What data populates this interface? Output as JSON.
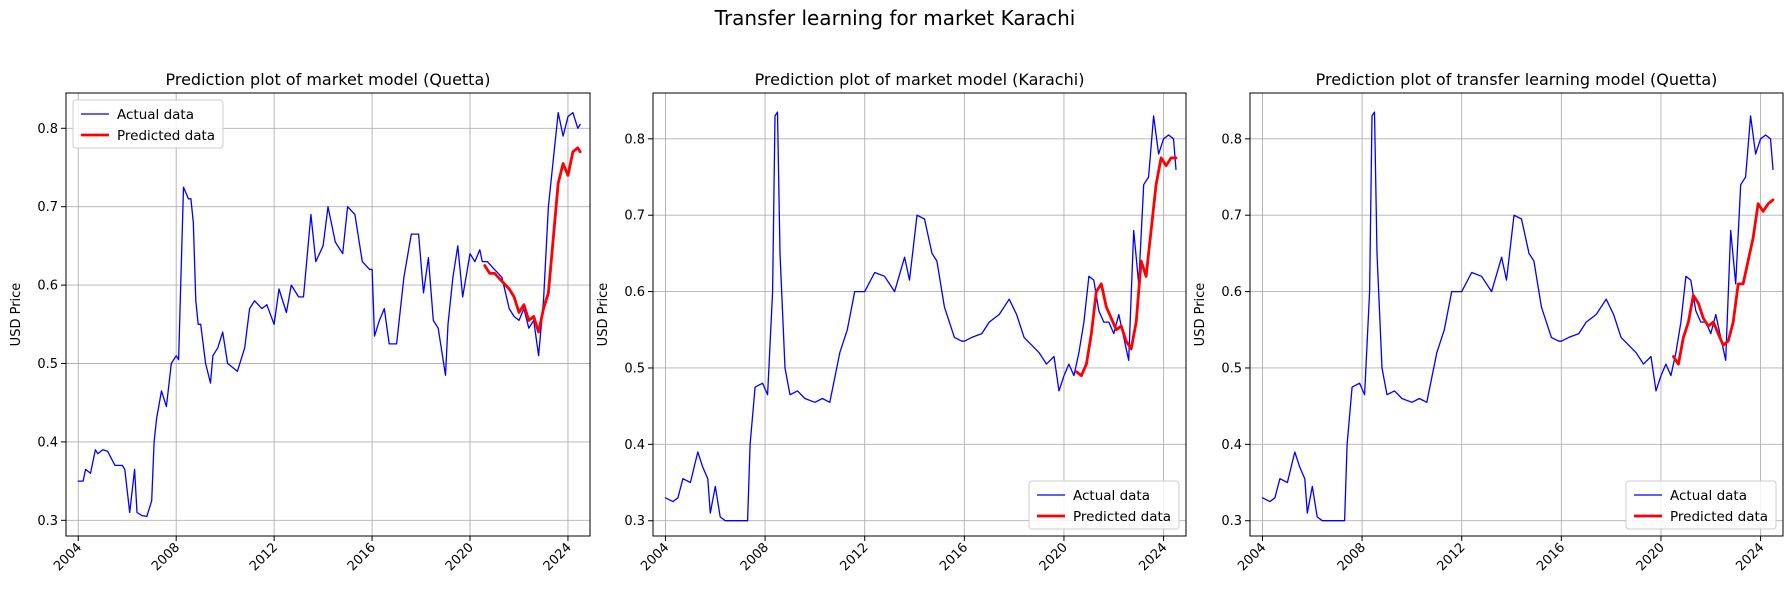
{
  "suptitle": "Transfer learning for market Karachi",
  "colors": {
    "actual": "#0000ff",
    "predicted": "#ff0000",
    "grid": "#b0b0b0"
  },
  "chart_data": [
    {
      "type": "line",
      "title": "Prediction plot of market model (Quetta)",
      "xlabel": "",
      "ylabel": "USD Price",
      "xlim": [
        2003.5,
        2024.9
      ],
      "ylim": [
        0.28,
        0.845
      ],
      "xticks": [
        2004,
        2008,
        2012,
        2016,
        2020,
        2024
      ],
      "yticks": [
        0.3,
        0.4,
        0.5,
        0.6,
        0.7,
        0.8
      ],
      "grid": true,
      "legend": {
        "placement": "upper-left",
        "entries": [
          "Actual data",
          "Predicted data"
        ]
      },
      "series": [
        {
          "name": "Actual data",
          "color": "#0000ff",
          "x": [
            2004.0,
            2004.2,
            2004.3,
            2004.5,
            2004.7,
            2004.8,
            2005.0,
            2005.2,
            2005.5,
            2005.8,
            2005.9,
            2006.1,
            2006.3,
            2006.4,
            2006.5,
            2006.6,
            2006.8,
            2007.0,
            2007.1,
            2007.2,
            2007.4,
            2007.6,
            2007.8,
            2008.0,
            2008.1,
            2008.3,
            2008.5,
            2008.6,
            2008.7,
            2008.8,
            2008.9,
            2009.0,
            2009.2,
            2009.4,
            2009.5,
            2009.7,
            2009.9,
            2010.1,
            2010.3,
            2010.5,
            2010.8,
            2011.0,
            2011.2,
            2011.5,
            2011.7,
            2012.0,
            2012.2,
            2012.5,
            2012.7,
            2013.0,
            2013.2,
            2013.5,
            2013.7,
            2014.0,
            2014.2,
            2014.5,
            2014.8,
            2015.0,
            2015.3,
            2015.6,
            2015.9,
            2016.0,
            2016.1,
            2016.3,
            2016.5,
            2016.7,
            2017.0,
            2017.3,
            2017.6,
            2017.9,
            2018.1,
            2018.3,
            2018.5,
            2018.7,
            2019.0,
            2019.1,
            2019.3,
            2019.5,
            2019.7,
            2020.0,
            2020.2,
            2020.4,
            2020.5,
            2020.7,
            2021.0,
            2021.3,
            2021.6,
            2021.8,
            2022.0,
            2022.2,
            2022.4,
            2022.6,
            2022.8,
            2023.0,
            2023.2,
            2023.4,
            2023.6,
            2023.8,
            2024.0,
            2024.2,
            2024.4,
            2024.5
          ],
          "y": [
            0.35,
            0.35,
            0.365,
            0.36,
            0.39,
            0.385,
            0.39,
            0.388,
            0.37,
            0.37,
            0.365,
            0.31,
            0.365,
            0.31,
            0.308,
            0.306,
            0.305,
            0.325,
            0.4,
            0.43,
            0.465,
            0.445,
            0.5,
            0.51,
            0.505,
            0.725,
            0.71,
            0.71,
            0.68,
            0.58,
            0.55,
            0.55,
            0.5,
            0.475,
            0.51,
            0.52,
            0.54,
            0.5,
            0.495,
            0.49,
            0.52,
            0.57,
            0.58,
            0.57,
            0.575,
            0.55,
            0.595,
            0.565,
            0.6,
            0.585,
            0.585,
            0.69,
            0.63,
            0.65,
            0.7,
            0.655,
            0.64,
            0.7,
            0.69,
            0.63,
            0.62,
            0.62,
            0.535,
            0.555,
            0.57,
            0.525,
            0.525,
            0.61,
            0.665,
            0.665,
            0.59,
            0.635,
            0.555,
            0.545,
            0.485,
            0.55,
            0.61,
            0.65,
            0.585,
            0.64,
            0.63,
            0.645,
            0.63,
            0.63,
            0.62,
            0.61,
            0.57,
            0.56,
            0.555,
            0.57,
            0.545,
            0.555,
            0.51,
            0.58,
            0.7,
            0.76,
            0.82,
            0.79,
            0.815,
            0.82,
            0.8,
            0.805
          ]
        },
        {
          "name": "Predicted data",
          "color": "#ff0000",
          "x": [
            2020.6,
            2020.8,
            2021.0,
            2021.3,
            2021.6,
            2021.8,
            2022.0,
            2022.2,
            2022.4,
            2022.6,
            2022.8,
            2023.0,
            2023.2,
            2023.4,
            2023.6,
            2023.8,
            2024.0,
            2024.2,
            2024.4,
            2024.5
          ],
          "y": [
            0.625,
            0.615,
            0.615,
            0.605,
            0.595,
            0.585,
            0.565,
            0.575,
            0.555,
            0.56,
            0.54,
            0.57,
            0.59,
            0.66,
            0.73,
            0.755,
            0.74,
            0.77,
            0.775,
            0.77
          ]
        }
      ]
    },
    {
      "type": "line",
      "title": "Prediction plot of market model (Karachi)",
      "xlabel": "",
      "ylabel": "USD Price",
      "xlim": [
        2003.5,
        2024.9
      ],
      "ylim": [
        0.28,
        0.86
      ],
      "xticks": [
        2004,
        2008,
        2012,
        2016,
        2020,
        2024
      ],
      "yticks": [
        0.3,
        0.4,
        0.5,
        0.6,
        0.7,
        0.8
      ],
      "grid": true,
      "legend": {
        "placement": "lower-right",
        "entries": [
          "Actual data",
          "Predicted data"
        ]
      },
      "series": [
        {
          "name": "Actual data",
          "color": "#0000ff",
          "x": [
            2004.0,
            2004.3,
            2004.5,
            2004.7,
            2005.0,
            2005.3,
            2005.5,
            2005.7,
            2005.8,
            2006.0,
            2006.2,
            2006.4,
            2006.6,
            2007.0,
            2007.3,
            2007.4,
            2007.6,
            2007.9,
            2008.1,
            2008.3,
            2008.4,
            2008.5,
            2008.6,
            2008.8,
            2009.0,
            2009.3,
            2009.6,
            2010.0,
            2010.3,
            2010.6,
            2011.0,
            2011.3,
            2011.6,
            2012.0,
            2012.4,
            2012.8,
            2013.2,
            2013.6,
            2013.8,
            2014.1,
            2014.4,
            2014.7,
            2014.9,
            2015.2,
            2015.6,
            2015.9,
            2016.0,
            2016.3,
            2016.7,
            2017.0,
            2017.4,
            2017.8,
            2018.1,
            2018.4,
            2018.7,
            2019.0,
            2019.3,
            2019.6,
            2019.8,
            2020.0,
            2020.2,
            2020.4,
            2020.6,
            2020.8,
            2021.0,
            2021.2,
            2021.4,
            2021.6,
            2021.8,
            2022.0,
            2022.2,
            2022.4,
            2022.6,
            2022.8,
            2023.0,
            2023.2,
            2023.4,
            2023.6,
            2023.8,
            2024.0,
            2024.2,
            2024.4,
            2024.5
          ],
          "y": [
            0.33,
            0.325,
            0.33,
            0.355,
            0.35,
            0.39,
            0.37,
            0.355,
            0.31,
            0.345,
            0.305,
            0.3,
            0.3,
            0.3,
            0.3,
            0.4,
            0.475,
            0.48,
            0.465,
            0.6,
            0.83,
            0.835,
            0.65,
            0.5,
            0.465,
            0.47,
            0.46,
            0.455,
            0.46,
            0.455,
            0.52,
            0.55,
            0.6,
            0.6,
            0.625,
            0.62,
            0.6,
            0.645,
            0.615,
            0.7,
            0.695,
            0.65,
            0.64,
            0.58,
            0.54,
            0.535,
            0.535,
            0.54,
            0.545,
            0.56,
            0.57,
            0.59,
            0.57,
            0.54,
            0.53,
            0.52,
            0.505,
            0.515,
            0.47,
            0.49,
            0.505,
            0.49,
            0.52,
            0.56,
            0.62,
            0.615,
            0.575,
            0.56,
            0.56,
            0.545,
            0.57,
            0.54,
            0.51,
            0.68,
            0.61,
            0.74,
            0.75,
            0.83,
            0.78,
            0.8,
            0.805,
            0.8,
            0.76
          ]
        },
        {
          "name": "Predicted data",
          "color": "#ff0000",
          "x": [
            2020.5,
            2020.7,
            2020.9,
            2021.1,
            2021.3,
            2021.5,
            2021.7,
            2021.9,
            2022.1,
            2022.3,
            2022.5,
            2022.7,
            2022.9,
            2023.1,
            2023.3,
            2023.5,
            2023.7,
            2023.9,
            2024.1,
            2024.3,
            2024.5
          ],
          "y": [
            0.495,
            0.49,
            0.505,
            0.545,
            0.6,
            0.61,
            0.58,
            0.565,
            0.55,
            0.555,
            0.535,
            0.525,
            0.56,
            0.64,
            0.62,
            0.68,
            0.74,
            0.775,
            0.765,
            0.775,
            0.775
          ]
        }
      ]
    },
    {
      "type": "line",
      "title": "Prediction plot of transfer learning model (Quetta)",
      "xlabel": "",
      "ylabel": "USD Price",
      "xlim": [
        2003.5,
        2024.9
      ],
      "ylim": [
        0.28,
        0.86
      ],
      "xticks": [
        2004,
        2008,
        2012,
        2016,
        2020,
        2024
      ],
      "yticks": [
        0.3,
        0.4,
        0.5,
        0.6,
        0.7,
        0.8
      ],
      "grid": true,
      "legend": {
        "placement": "lower-right",
        "entries": [
          "Actual data",
          "Predicted data"
        ]
      },
      "series": [
        {
          "name": "Actual data",
          "color": "#0000ff",
          "x": [
            2004.0,
            2004.3,
            2004.5,
            2004.7,
            2005.0,
            2005.3,
            2005.5,
            2005.7,
            2005.8,
            2006.0,
            2006.2,
            2006.4,
            2006.6,
            2007.0,
            2007.3,
            2007.4,
            2007.6,
            2007.9,
            2008.1,
            2008.3,
            2008.4,
            2008.5,
            2008.6,
            2008.8,
            2009.0,
            2009.3,
            2009.6,
            2010.0,
            2010.3,
            2010.6,
            2011.0,
            2011.3,
            2011.6,
            2012.0,
            2012.4,
            2012.8,
            2013.2,
            2013.6,
            2013.8,
            2014.1,
            2014.4,
            2014.7,
            2014.9,
            2015.2,
            2015.6,
            2015.9,
            2016.0,
            2016.3,
            2016.7,
            2017.0,
            2017.4,
            2017.8,
            2018.1,
            2018.4,
            2018.7,
            2019.0,
            2019.3,
            2019.6,
            2019.8,
            2020.0,
            2020.2,
            2020.4,
            2020.6,
            2020.8,
            2021.0,
            2021.2,
            2021.4,
            2021.6,
            2021.8,
            2022.0,
            2022.2,
            2022.4,
            2022.6,
            2022.8,
            2023.0,
            2023.2,
            2023.4,
            2023.6,
            2023.8,
            2024.0,
            2024.2,
            2024.4,
            2024.5
          ],
          "y": [
            0.33,
            0.325,
            0.33,
            0.355,
            0.35,
            0.39,
            0.37,
            0.355,
            0.31,
            0.345,
            0.305,
            0.3,
            0.3,
            0.3,
            0.3,
            0.4,
            0.475,
            0.48,
            0.465,
            0.6,
            0.83,
            0.835,
            0.65,
            0.5,
            0.465,
            0.47,
            0.46,
            0.455,
            0.46,
            0.455,
            0.52,
            0.55,
            0.6,
            0.6,
            0.625,
            0.62,
            0.6,
            0.645,
            0.615,
            0.7,
            0.695,
            0.65,
            0.64,
            0.58,
            0.54,
            0.535,
            0.535,
            0.54,
            0.545,
            0.56,
            0.57,
            0.59,
            0.57,
            0.54,
            0.53,
            0.52,
            0.505,
            0.515,
            0.47,
            0.49,
            0.505,
            0.49,
            0.52,
            0.56,
            0.62,
            0.615,
            0.575,
            0.56,
            0.56,
            0.545,
            0.57,
            0.54,
            0.51,
            0.68,
            0.61,
            0.74,
            0.75,
            0.83,
            0.78,
            0.8,
            0.805,
            0.8,
            0.76
          ]
        },
        {
          "name": "Predicted data",
          "color": "#ff0000",
          "x": [
            2020.5,
            2020.7,
            2020.9,
            2021.1,
            2021.3,
            2021.5,
            2021.7,
            2021.9,
            2022.1,
            2022.3,
            2022.5,
            2022.7,
            2022.9,
            2023.1,
            2023.3,
            2023.5,
            2023.7,
            2023.9,
            2024.1,
            2024.3,
            2024.5
          ],
          "y": [
            0.515,
            0.505,
            0.54,
            0.56,
            0.595,
            0.585,
            0.565,
            0.555,
            0.56,
            0.545,
            0.53,
            0.535,
            0.56,
            0.61,
            0.61,
            0.64,
            0.67,
            0.715,
            0.705,
            0.715,
            0.72
          ]
        }
      ]
    }
  ]
}
